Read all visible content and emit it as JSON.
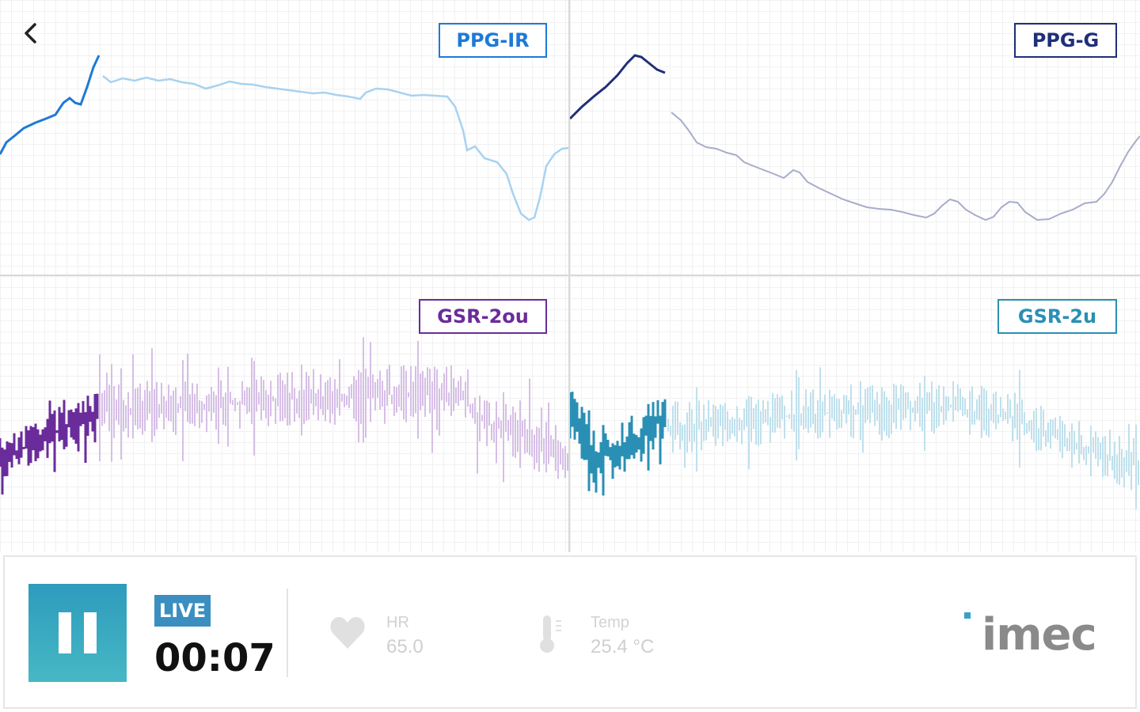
{
  "nav": {
    "back_icon": "chevron-left-icon"
  },
  "panels": [
    {
      "id": "ppg_ir",
      "label": "PPG-IR",
      "color": "#1e7ad6",
      "faded_color": "#a8d2f0",
      "signal": "smooth",
      "active_fraction": 0.17
    },
    {
      "id": "ppg_g",
      "label": "PPG-G",
      "color": "#1f2f7a",
      "faded_color": "#a7acc9",
      "signal": "smooth",
      "active_fraction": 0.17
    },
    {
      "id": "gsr_20u",
      "label": "GSR-2ou",
      "color": "#6a2c9a",
      "faded_color": "#d6bfe6",
      "signal": "noisy",
      "active_fraction": 0.17
    },
    {
      "id": "gsr_2u",
      "label": "GSR-2u",
      "color": "#2a8fb4",
      "faded_color": "#bfe0ec",
      "signal": "noisy",
      "active_fraction": 0.17
    }
  ],
  "footer": {
    "pause_icon": "pause-icon",
    "live_label": "LIVE",
    "elapsed": "00:07",
    "hr": {
      "icon": "heart-icon",
      "label": "HR",
      "value": "65.0"
    },
    "temp": {
      "icon": "thermometer-icon",
      "label": "Temp",
      "value": "25.4 °C"
    },
    "brand": "imec",
    "accent": "#3aa0c8"
  }
}
